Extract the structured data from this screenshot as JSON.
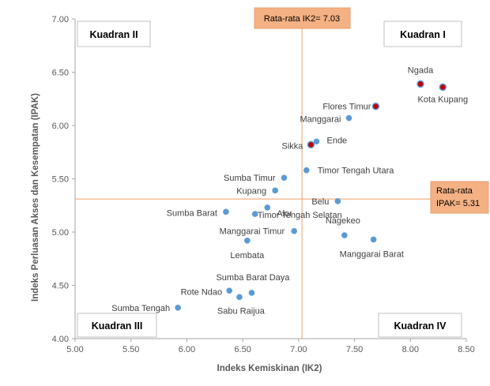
{
  "chart_data": {
    "type": "scatter",
    "xlabel": "Indeks Kemiskinan (IK2)",
    "ylabel": "Indeks Perluasan Akses dan Kesempatan (IPAK)",
    "xlim": [
      5.0,
      8.5
    ],
    "ylim": [
      4.0,
      7.0
    ],
    "x_ticks": [
      "5.00",
      "5.50",
      "6.00",
      "6.50",
      "7.00",
      "7.50",
      "8.00",
      "8.50"
    ],
    "y_ticks": [
      "4.00",
      "4.50",
      "5.00",
      "5.50",
      "6.00",
      "6.50",
      "7.00"
    ],
    "grid": false,
    "point_color": "#5b9bd5",
    "highlight_color": "#c00000",
    "reference_line_color": "#f4b183",
    "callout_color": "#f4b183",
    "reference_lines": {
      "x": {
        "value": 7.03,
        "label": "Rata-rata IK2= 7.03"
      },
      "y": {
        "value": 5.31,
        "label_line1": "Rata-rata",
        "label_line2": "IPAK= 5.31"
      }
    },
    "quadrants": {
      "q1": "Kuadran I",
      "q2": "Kuadran II",
      "q3": "Kuadran III",
      "q4": "Kuadran IV"
    },
    "points": [
      {
        "name": "Ngada",
        "x": 8.09,
        "y": 6.39,
        "highlight": true
      },
      {
        "name": "Kota Kupang",
        "x": 8.29,
        "y": 6.36,
        "highlight": true
      },
      {
        "name": "Flores Timur",
        "x": 7.69,
        "y": 6.18,
        "highlight": true
      },
      {
        "name": "Manggarai",
        "x": 7.45,
        "y": 6.07,
        "highlight": false
      },
      {
        "name": "Ende",
        "x": 7.16,
        "y": 5.85,
        "highlight": false
      },
      {
        "name": "Sikka",
        "x": 7.11,
        "y": 5.82,
        "highlight": true
      },
      {
        "name": "Timor Tengah Utara",
        "x": 7.07,
        "y": 5.58,
        "highlight": false
      },
      {
        "name": "Sumba Timur",
        "x": 6.87,
        "y": 5.51,
        "highlight": false
      },
      {
        "name": "Kupang",
        "x": 6.79,
        "y": 5.39,
        "highlight": false
      },
      {
        "name": "Belu",
        "x": 7.35,
        "y": 5.29,
        "highlight": false
      },
      {
        "name": "Alor",
        "x": 6.72,
        "y": 5.23,
        "highlight": false
      },
      {
        "name": "Sumba Barat",
        "x": 6.35,
        "y": 5.19,
        "highlight": false
      },
      {
        "name": "Timor Tengah Selatan",
        "x": 6.61,
        "y": 5.17,
        "highlight": false
      },
      {
        "name": "Manggarai Timur",
        "x": 6.96,
        "y": 5.01,
        "highlight": false
      },
      {
        "name": "Nagekeo",
        "x": 7.41,
        "y": 4.97,
        "highlight": false
      },
      {
        "name": "Manggarai Barat",
        "x": 7.67,
        "y": 4.93,
        "highlight": false
      },
      {
        "name": "Lembata",
        "x": 6.54,
        "y": 4.92,
        "highlight": false
      },
      {
        "name": "Sumba Barat Daya",
        "x": 6.58,
        "y": 4.43,
        "highlight": false
      },
      {
        "name": "Rote Ndao",
        "x": 6.38,
        "y": 4.45,
        "highlight": false
      },
      {
        "name": "Sabu Raijua",
        "x": 6.47,
        "y": 4.39,
        "highlight": false
      },
      {
        "name": "Sumba Tengah",
        "x": 5.92,
        "y": 4.29,
        "highlight": false
      }
    ]
  }
}
